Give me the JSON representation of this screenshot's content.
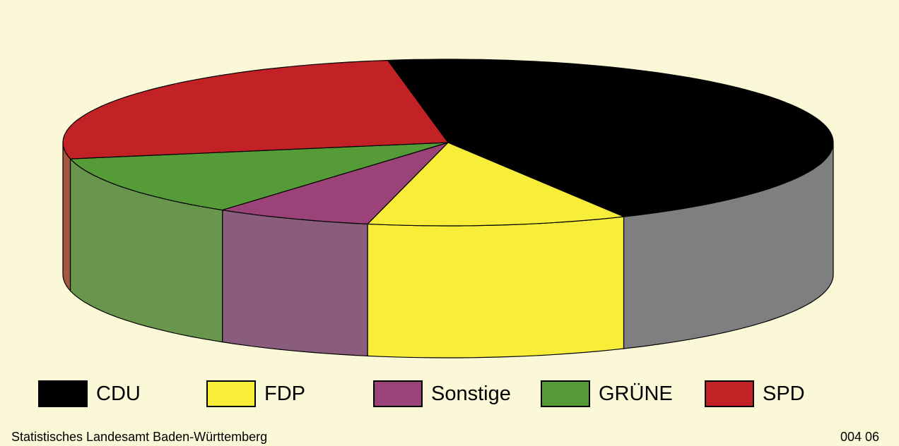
{
  "chart_data": {
    "type": "pie",
    "style": "3d",
    "slices": [
      {
        "label": "CDU",
        "value": 44.2,
        "top_color": "#000000",
        "side_color": "#7f7f81"
      },
      {
        "label": "FDP",
        "value": 10.7,
        "top_color": "#f8ee3a",
        "side_color": "#f8ee3a"
      },
      {
        "label": "Sonstige",
        "value": 6.5,
        "top_color": "#9b4379",
        "side_color": "#8a5d7c"
      },
      {
        "label": "GRÜNE",
        "value": 11.7,
        "top_color": "#559c38",
        "side_color": "#69954c"
      },
      {
        "label": "SPD",
        "value": 25.2,
        "top_color": "#c22126",
        "side_color": "#a45740"
      }
    ],
    "legend": [
      {
        "label": "CDU",
        "color": "#000000"
      },
      {
        "label": "FDP",
        "color": "#f8ee3a"
      },
      {
        "label": "Sonstige",
        "color": "#9b4379"
      },
      {
        "label": "GRÜNE",
        "color": "#559c38"
      },
      {
        "label": "SPD",
        "color": "#c22126"
      }
    ],
    "legend_placement": "bottom"
  },
  "footer": {
    "source": "Statistisches Landesamt Baden-Württemberg",
    "code": "004 06"
  },
  "colors": {
    "background": "#fbf8d8"
  }
}
